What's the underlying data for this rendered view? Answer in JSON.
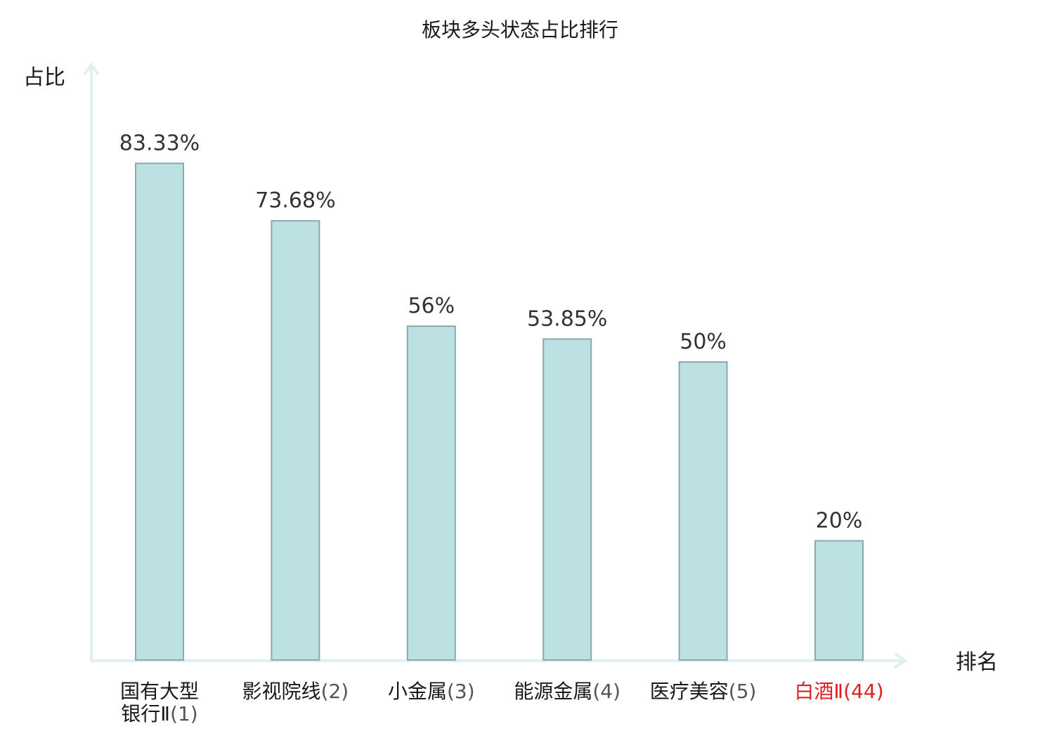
{
  "chart_data": {
    "type": "bar",
    "title": "板块多头状态占比排行",
    "xlabel": "排名",
    "ylabel": "占比",
    "ylim": [
      0,
      100
    ],
    "grid": false,
    "legend": "none",
    "categories": [
      {
        "name_lines": [
          "国有大型",
          "银行Ⅱ"
        ],
        "rank": "(1)",
        "highlight": false
      },
      {
        "name_lines": [
          "影视院线"
        ],
        "rank": "(2)",
        "highlight": false
      },
      {
        "name_lines": [
          "小金属"
        ],
        "rank": "(3)",
        "highlight": false
      },
      {
        "name_lines": [
          "能源金属"
        ],
        "rank": "(4)",
        "highlight": false
      },
      {
        "name_lines": [
          "医疗美容"
        ],
        "rank": "(5)",
        "highlight": false
      },
      {
        "name_lines": [
          "白酒Ⅱ"
        ],
        "rank": "(44)",
        "highlight": true
      }
    ],
    "values": [
      83.33,
      73.68,
      56,
      53.85,
      50,
      20
    ],
    "value_labels": [
      "83.33%",
      "73.68%",
      "56%",
      "53.85%",
      "50%",
      "20%"
    ]
  },
  "colors": {
    "bar_fill": "#bde0e3",
    "bar_stroke": "#8aa9ab",
    "axis": "#dff1ef",
    "label_normal": "#1a1a1a",
    "rank_normal": "#555555",
    "label_highlight": "#e02020"
  }
}
